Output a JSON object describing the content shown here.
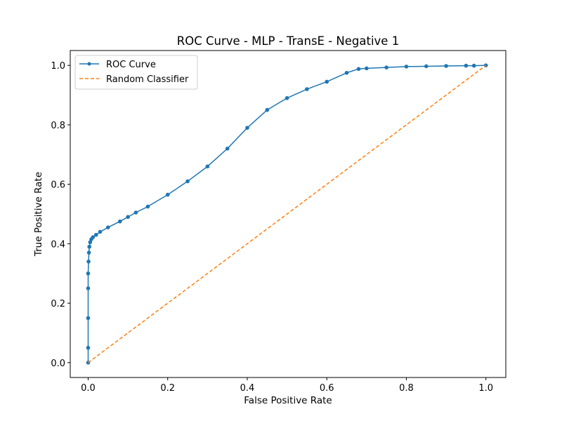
{
  "chart_data": {
    "type": "line",
    "title": "ROC Curve - MLP - TransE - Negative 1",
    "xlabel": "False Positive Rate",
    "ylabel": "True Positive Rate",
    "xlim": [
      -0.045,
      1.05
    ],
    "ylim": [
      -0.05,
      1.05
    ],
    "xticks": [
      0.0,
      0.2,
      0.4,
      0.6,
      0.8,
      1.0
    ],
    "yticks": [
      0.0,
      0.2,
      0.4,
      0.6,
      0.8,
      1.0
    ],
    "xtick_labels": [
      "0.0",
      "0.2",
      "0.4",
      "0.6",
      "0.8",
      "1.0"
    ],
    "ytick_labels": [
      "0.0",
      "0.2",
      "0.4",
      "0.6",
      "0.8",
      "1.0"
    ],
    "grid": false,
    "legend_position": "top-left",
    "series": [
      {
        "name": "ROC Curve",
        "color": "#1f77b4",
        "style": "solid",
        "marker": "circle",
        "x": [
          0.0,
          0.0,
          0.0,
          0.0,
          0.0,
          0.001,
          0.002,
          0.003,
          0.005,
          0.008,
          0.012,
          0.02,
          0.03,
          0.05,
          0.08,
          0.1,
          0.12,
          0.15,
          0.2,
          0.25,
          0.3,
          0.35,
          0.4,
          0.45,
          0.5,
          0.55,
          0.6,
          0.65,
          0.68,
          0.7,
          0.75,
          0.8,
          0.85,
          0.9,
          0.95,
          0.97,
          1.0
        ],
        "y": [
          0.0,
          0.05,
          0.15,
          0.25,
          0.3,
          0.34,
          0.37,
          0.39,
          0.405,
          0.415,
          0.422,
          0.43,
          0.44,
          0.455,
          0.475,
          0.49,
          0.505,
          0.525,
          0.565,
          0.61,
          0.66,
          0.72,
          0.79,
          0.85,
          0.89,
          0.92,
          0.945,
          0.975,
          0.988,
          0.99,
          0.993,
          0.996,
          0.997,
          0.998,
          0.999,
          0.999,
          1.0
        ]
      },
      {
        "name": "Random Classifier",
        "color": "#ff7f0e",
        "style": "dashed",
        "marker": "none",
        "x": [
          0.0,
          1.0
        ],
        "y": [
          0.0,
          1.0
        ]
      }
    ]
  }
}
